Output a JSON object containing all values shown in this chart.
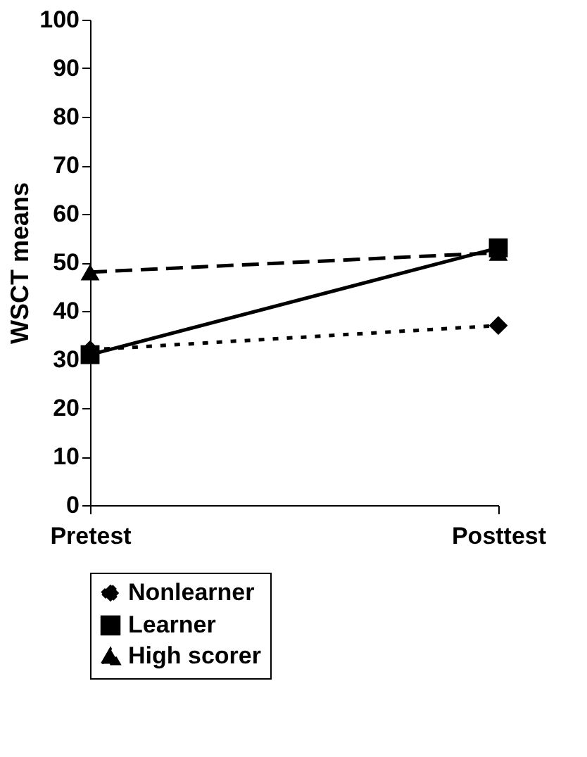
{
  "chart_data": {
    "type": "line",
    "ylabel": "WSCT means",
    "categories": [
      "Pretest",
      "Posttest"
    ],
    "series": [
      {
        "name": "Nonlearner",
        "color": "#000000",
        "values": [
          32,
          37
        ],
        "marker": "diamond",
        "line_style": "dotted"
      },
      {
        "name": "Learner",
        "color": "#000000",
        "values": [
          31,
          53
        ],
        "marker": "square",
        "line_style": "solid"
      },
      {
        "name": "High scorer",
        "color": "#000000",
        "values": [
          48,
          52
        ],
        "marker": "triangle",
        "line_style": "dashed"
      }
    ],
    "ylim": [
      0,
      100
    ],
    "yticks": [
      0,
      10,
      20,
      30,
      40,
      50,
      60,
      70,
      80,
      90,
      100
    ],
    "grid": false,
    "legend": "bottom"
  }
}
